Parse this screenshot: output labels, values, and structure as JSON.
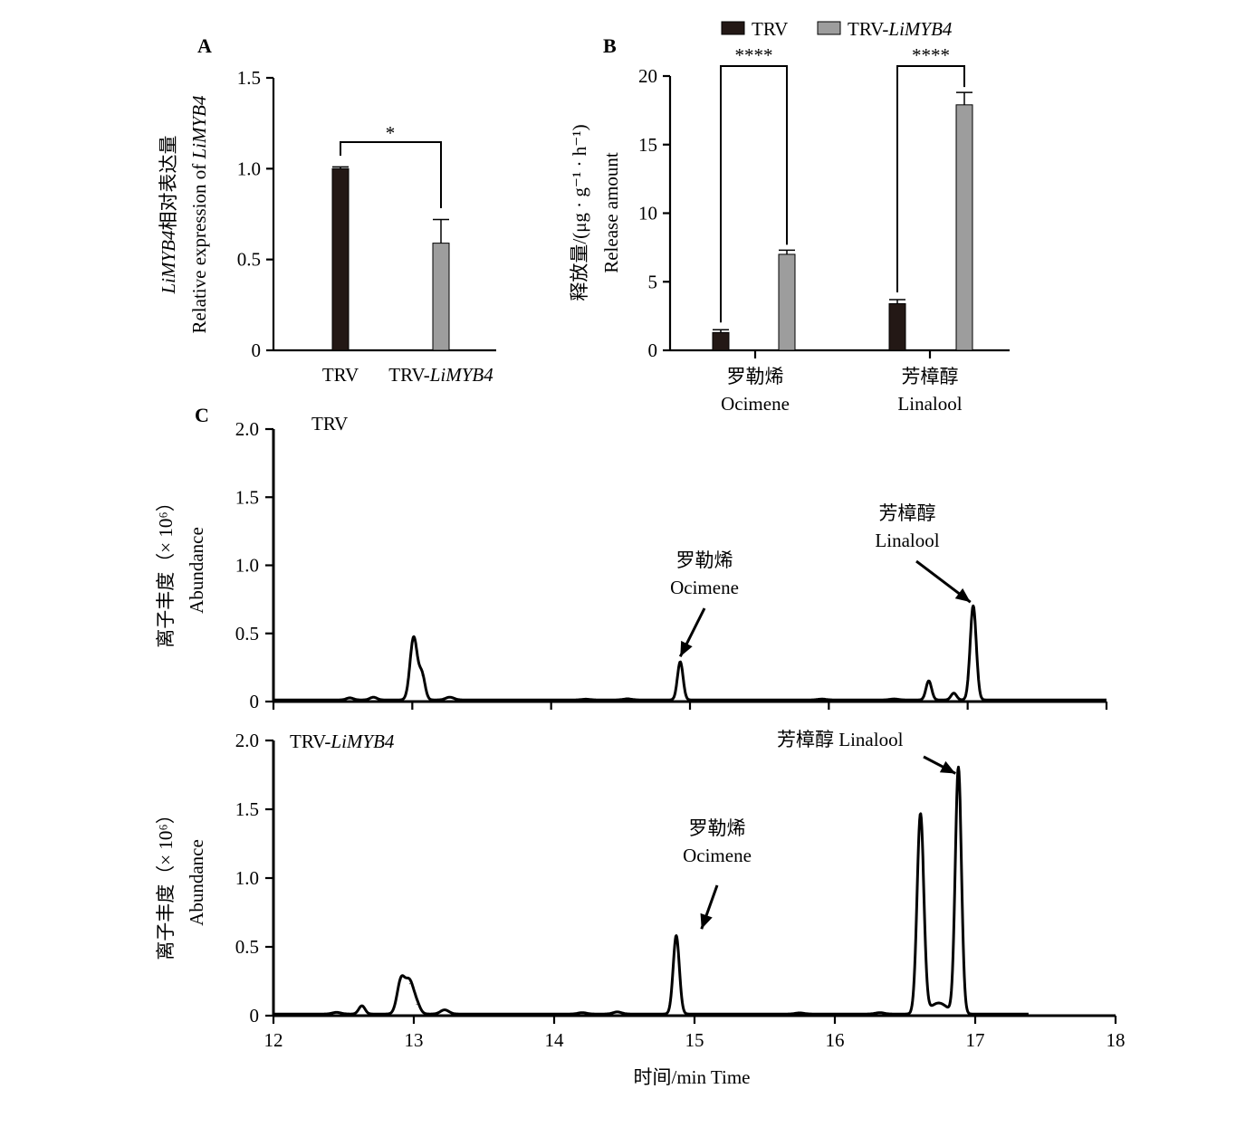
{
  "figure": {
    "panel_letters": [
      "A",
      "B",
      "C"
    ]
  },
  "chart_data": [
    {
      "panel": "A",
      "type": "bar",
      "categories": [
        "TRV",
        "TRV-LiMYB4"
      ],
      "category_parts": [
        [
          {
            "text": "TRV",
            "italic": false
          }
        ],
        [
          {
            "text": "TRV-",
            "italic": false
          },
          {
            "text": "LiMYB4",
            "italic": true
          }
        ]
      ],
      "values": [
        1.0,
        0.59
      ],
      "errors": [
        0.01,
        0.13
      ],
      "colors": [
        "#231815",
        "#9d9d9d"
      ],
      "ylabel_parts_line1": [
        {
          "text": "LiMYB4",
          "italic": true
        },
        {
          "text": "相对表达量",
          "italic": false
        }
      ],
      "ylabel_parts_line2": [
        {
          "text": "Relative expression of ",
          "italic": false
        },
        {
          "text": "LiMYB4",
          "italic": true
        }
      ],
      "ylim": [
        0,
        1.5
      ],
      "yticks": [
        0,
        0.5,
        1.0,
        1.5
      ],
      "ytick_labels": [
        "0",
        "0.5",
        "1.0",
        "1.5"
      ],
      "significance": "*"
    },
    {
      "panel": "B",
      "type": "bar",
      "categories": [
        "罗勒烯 Ocimene",
        "芳樟醇 Linalool"
      ],
      "category_lines": [
        [
          "罗勒烯",
          "Ocimene"
        ],
        [
          "芳樟醇",
          "Linalool"
        ]
      ],
      "series": [
        {
          "name": "TRV",
          "name_parts": [
            {
              "text": "TRV",
              "italic": false
            }
          ],
          "color": "#231815",
          "values": [
            1.3,
            3.4
          ],
          "errors": [
            0.2,
            0.3
          ]
        },
        {
          "name": "TRV-LiMYB4",
          "name_parts": [
            {
              "text": "TRV-",
              "italic": false
            },
            {
              "text": "LiMYB4",
              "italic": true
            }
          ],
          "color": "#9d9d9d",
          "values": [
            7.0,
            17.9
          ],
          "errors": [
            0.3,
            0.9
          ]
        }
      ],
      "ylabel_line1": "释放量/(μg · g⁻¹ · h⁻¹)",
      "ylabel_line2": "Release amount",
      "ylim": [
        0,
        20
      ],
      "yticks": [
        0,
        5,
        10,
        15,
        20
      ],
      "ytick_labels": [
        "0",
        "5",
        "10",
        "15",
        "20"
      ],
      "significance": [
        "****",
        "****"
      ],
      "legend": "top"
    },
    {
      "panel": "C",
      "type": "line",
      "title": "TRV",
      "title_parts": [
        {
          "text": "TRV",
          "italic": false
        }
      ],
      "xlim": [
        12,
        18
      ],
      "ylim": [
        0,
        2.0
      ],
      "yticks": [
        0,
        0.5,
        1.0,
        1.5,
        2.0
      ],
      "ytick_labels": [
        "0",
        "0.5",
        "1.0",
        "1.5",
        "2.0"
      ],
      "xticks": [
        12,
        13,
        14,
        15,
        16,
        17,
        18
      ],
      "ylabel_line1": "离子丰度（× 10⁶）",
      "ylabel_line2": "Abundance",
      "peaks": [
        {
          "x": 12.55,
          "y": 0.015,
          "w": 0.025
        },
        {
          "x": 12.72,
          "y": 0.02,
          "w": 0.025
        },
        {
          "x": 13.01,
          "y": 0.46,
          "w": 0.026
        },
        {
          "x": 13.07,
          "y": 0.18,
          "w": 0.022
        },
        {
          "x": 13.27,
          "y": 0.02,
          "w": 0.03
        },
        {
          "x": 14.25,
          "y": 0.005,
          "w": 0.03
        },
        {
          "x": 14.55,
          "y": 0.008,
          "w": 0.03
        },
        {
          "x": 14.93,
          "y": 0.28,
          "w": 0.02
        },
        {
          "x": 15.95,
          "y": 0.006,
          "w": 0.03
        },
        {
          "x": 16.47,
          "y": 0.007,
          "w": 0.03
        },
        {
          "x": 16.72,
          "y": 0.14,
          "w": 0.02
        },
        {
          "x": 16.9,
          "y": 0.05,
          "w": 0.02
        },
        {
          "x": 17.04,
          "y": 0.69,
          "w": 0.022
        }
      ],
      "annotations": [
        {
          "lines": [
            "罗勒烯",
            "Ocimene"
          ],
          "target_x": 14.93,
          "target_y": 0.33
        },
        {
          "lines": [
            "芳樟醇",
            "Linalool"
          ],
          "target_x": 17.02,
          "target_y": 0.73
        }
      ]
    },
    {
      "panel": "C",
      "type": "line",
      "title": "TRV-LiMYB4",
      "title_parts": [
        {
          "text": "TRV-",
          "italic": false
        },
        {
          "text": "LiMYB4",
          "italic": true
        }
      ],
      "xlim": [
        12,
        18
      ],
      "ylim": [
        0,
        2.0
      ],
      "yticks": [
        0,
        0.5,
        1.0,
        1.5,
        2.0
      ],
      "ytick_labels": [
        "0",
        "0.5",
        "1.0",
        "1.5",
        "2.0"
      ],
      "xticks": [
        12,
        13,
        14,
        15,
        16,
        17,
        18
      ],
      "xtick_labels": [
        "12",
        "13",
        "14",
        "15",
        "16",
        "17",
        "18"
      ],
      "xlabel": "时间/min  Time",
      "ylabel_line1": "离子丰度（× 10⁶）",
      "ylabel_line2": "Abundance",
      "peaks": [
        {
          "x": 12.45,
          "y": 0.012,
          "w": 0.03
        },
        {
          "x": 12.63,
          "y": 0.06,
          "w": 0.022
        },
        {
          "x": 12.91,
          "y": 0.25,
          "w": 0.028
        },
        {
          "x": 12.97,
          "y": 0.22,
          "w": 0.028
        },
        {
          "x": 13.02,
          "y": 0.07,
          "w": 0.025
        },
        {
          "x": 13.22,
          "y": 0.03,
          "w": 0.03
        },
        {
          "x": 14.2,
          "y": 0.01,
          "w": 0.03
        },
        {
          "x": 14.45,
          "y": 0.015,
          "w": 0.03
        },
        {
          "x": 14.87,
          "y": 0.57,
          "w": 0.022
        },
        {
          "x": 15.75,
          "y": 0.008,
          "w": 0.03
        },
        {
          "x": 16.32,
          "y": 0.01,
          "w": 0.03
        },
        {
          "x": 16.61,
          "y": 1.45,
          "w": 0.024
        },
        {
          "x": 16.74,
          "y": 0.08,
          "w": 0.06
        },
        {
          "x": 16.88,
          "y": 1.79,
          "w": 0.022
        }
      ],
      "annotations": [
        {
          "lines": [
            "罗勒烯",
            "Ocimene"
          ],
          "target_x": 15.05,
          "target_y": 0.63
        },
        {
          "lines": [
            "芳樟醇 Linalool"
          ],
          "target_x": 16.86,
          "target_y": 1.76
        }
      ]
    }
  ]
}
